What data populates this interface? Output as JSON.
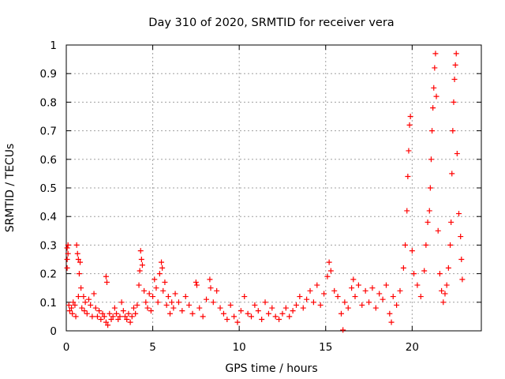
{
  "chart_data": {
    "type": "scatter",
    "title": "Day 310 of 2020, SRMTID for receiver vera",
    "xlabel": "GPS time / hours",
    "ylabel": "SRMTID / TECUs",
    "xlim": [
      0,
      24
    ],
    "ylim": [
      0,
      1
    ],
    "x_ticks": [
      0,
      5,
      10,
      15,
      20
    ],
    "x_tick_labels": [
      "0",
      "5",
      "10",
      "15",
      "20"
    ],
    "y_ticks": [
      0,
      0.1,
      0.2,
      0.3,
      0.4,
      0.5,
      0.6,
      0.7,
      0.8,
      0.9,
      1
    ],
    "y_tick_labels": [
      "0",
      "0.1",
      "0.2",
      "0.3",
      "0.4",
      "0.5",
      "0.6",
      "0.7",
      "0.8",
      "0.9",
      "1"
    ],
    "grid": true,
    "marker": "+",
    "marker_color": "#ff0000",
    "series": [
      {
        "name": "SRMTID",
        "points": [
          [
            0.05,
            0.29
          ],
          [
            0.05,
            0.25
          ],
          [
            0.05,
            0.22
          ],
          [
            0.1,
            0.3
          ],
          [
            0.1,
            0.27
          ],
          [
            0.15,
            0.09
          ],
          [
            0.2,
            0.07
          ],
          [
            0.3,
            0.08
          ],
          [
            0.35,
            0.06
          ],
          [
            0.4,
            0.1
          ],
          [
            0.5,
            0.09
          ],
          [
            0.55,
            0.05
          ],
          [
            0.6,
            0.3
          ],
          [
            0.65,
            0.27
          ],
          [
            0.7,
            0.25
          ],
          [
            0.7,
            0.12
          ],
          [
            0.75,
            0.2
          ],
          [
            0.8,
            0.24
          ],
          [
            0.85,
            0.15
          ],
          [
            0.9,
            0.08
          ],
          [
            1.0,
            0.12
          ],
          [
            1.05,
            0.07
          ],
          [
            1.1,
            0.1
          ],
          [
            1.2,
            0.06
          ],
          [
            1.3,
            0.11
          ],
          [
            1.4,
            0.09
          ],
          [
            1.5,
            0.05
          ],
          [
            1.6,
            0.13
          ],
          [
            1.7,
            0.08
          ],
          [
            1.8,
            0.05
          ],
          [
            1.9,
            0.07
          ],
          [
            2.0,
            0.04
          ],
          [
            2.1,
            0.06
          ],
          [
            2.2,
            0.05
          ],
          [
            2.3,
            0.03
          ],
          [
            2.3,
            0.19
          ],
          [
            2.35,
            0.17
          ],
          [
            2.4,
            0.02
          ],
          [
            2.5,
            0.06
          ],
          [
            2.6,
            0.04
          ],
          [
            2.7,
            0.05
          ],
          [
            2.8,
            0.08
          ],
          [
            2.9,
            0.06
          ],
          [
            3.0,
            0.04
          ],
          [
            3.1,
            0.05
          ],
          [
            3.2,
            0.1
          ],
          [
            3.3,
            0.07
          ],
          [
            3.4,
            0.05
          ],
          [
            3.5,
            0.04
          ],
          [
            3.6,
            0.06
          ],
          [
            3.7,
            0.03
          ],
          [
            3.8,
            0.05
          ],
          [
            3.9,
            0.08
          ],
          [
            4.0,
            0.06
          ],
          [
            4.1,
            0.09
          ],
          [
            4.2,
            0.16
          ],
          [
            4.25,
            0.21
          ],
          [
            4.3,
            0.28
          ],
          [
            4.35,
            0.25
          ],
          [
            4.4,
            0.23
          ],
          [
            4.5,
            0.14
          ],
          [
            4.6,
            0.1
          ],
          [
            4.7,
            0.08
          ],
          [
            4.8,
            0.13
          ],
          [
            4.9,
            0.07
          ],
          [
            5.0,
            0.12
          ],
          [
            5.1,
            0.18
          ],
          [
            5.2,
            0.15
          ],
          [
            5.3,
            0.1
          ],
          [
            5.4,
            0.2
          ],
          [
            5.5,
            0.24
          ],
          [
            5.55,
            0.22
          ],
          [
            5.6,
            0.14
          ],
          [
            5.7,
            0.17
          ],
          [
            5.8,
            0.09
          ],
          [
            5.9,
            0.12
          ],
          [
            6.0,
            0.06
          ],
          [
            6.1,
            0.1
          ],
          [
            6.2,
            0.08
          ],
          [
            6.3,
            0.13
          ],
          [
            6.5,
            0.1
          ],
          [
            6.7,
            0.07
          ],
          [
            6.9,
            0.12
          ],
          [
            7.1,
            0.09
          ],
          [
            7.3,
            0.06
          ],
          [
            7.5,
            0.17
          ],
          [
            7.55,
            0.16
          ],
          [
            7.7,
            0.08
          ],
          [
            7.9,
            0.05
          ],
          [
            8.1,
            0.11
          ],
          [
            8.3,
            0.18
          ],
          [
            8.35,
            0.15
          ],
          [
            8.5,
            0.1
          ],
          [
            8.7,
            0.14
          ],
          [
            8.9,
            0.08
          ],
          [
            9.1,
            0.06
          ],
          [
            9.3,
            0.04
          ],
          [
            9.5,
            0.09
          ],
          [
            9.7,
            0.05
          ],
          [
            9.9,
            0.03
          ],
          [
            10.1,
            0.07
          ],
          [
            10.3,
            0.12
          ],
          [
            10.5,
            0.06
          ],
          [
            10.7,
            0.05
          ],
          [
            10.9,
            0.09
          ],
          [
            11.1,
            0.07
          ],
          [
            11.3,
            0.04
          ],
          [
            11.5,
            0.1
          ],
          [
            11.7,
            0.06
          ],
          [
            11.9,
            0.08
          ],
          [
            12.1,
            0.05
          ],
          [
            12.3,
            0.04
          ],
          [
            12.5,
            0.06
          ],
          [
            12.7,
            0.08
          ],
          [
            12.9,
            0.05
          ],
          [
            13.1,
            0.07
          ],
          [
            13.3,
            0.09
          ],
          [
            13.5,
            0.12
          ],
          [
            13.7,
            0.08
          ],
          [
            13.9,
            0.11
          ],
          [
            14.1,
            0.14
          ],
          [
            14.3,
            0.1
          ],
          [
            14.5,
            0.16
          ],
          [
            14.7,
            0.09
          ],
          [
            14.9,
            0.13
          ],
          [
            15.1,
            0.19
          ],
          [
            15.2,
            0.24
          ],
          [
            15.3,
            0.21
          ],
          [
            15.5,
            0.14
          ],
          [
            15.7,
            0.12
          ],
          [
            15.9,
            0.06
          ],
          [
            16.0,
            0.003
          ],
          [
            16.1,
            0.1
          ],
          [
            16.3,
            0.08
          ],
          [
            16.5,
            0.15
          ],
          [
            16.6,
            0.18
          ],
          [
            16.7,
            0.12
          ],
          [
            16.9,
            0.16
          ],
          [
            17.1,
            0.09
          ],
          [
            17.3,
            0.14
          ],
          [
            17.5,
            0.1
          ],
          [
            17.7,
            0.15
          ],
          [
            17.9,
            0.08
          ],
          [
            18.1,
            0.13
          ],
          [
            18.3,
            0.11
          ],
          [
            18.5,
            0.16
          ],
          [
            18.7,
            0.06
          ],
          [
            18.8,
            0.03
          ],
          [
            18.9,
            0.12
          ],
          [
            19.1,
            0.09
          ],
          [
            19.3,
            0.14
          ],
          [
            19.5,
            0.22
          ],
          [
            19.6,
            0.3
          ],
          [
            19.7,
            0.42
          ],
          [
            19.75,
            0.54
          ],
          [
            19.8,
            0.63
          ],
          [
            19.85,
            0.72
          ],
          [
            19.9,
            0.75
          ],
          [
            20.0,
            0.28
          ],
          [
            20.1,
            0.2
          ],
          [
            20.3,
            0.16
          ],
          [
            20.5,
            0.12
          ],
          [
            20.7,
            0.21
          ],
          [
            20.8,
            0.3
          ],
          [
            20.9,
            0.38
          ],
          [
            21.0,
            0.42
          ],
          [
            21.05,
            0.5
          ],
          [
            21.1,
            0.6
          ],
          [
            21.15,
            0.7
          ],
          [
            21.2,
            0.78
          ],
          [
            21.25,
            0.85
          ],
          [
            21.3,
            0.92
          ],
          [
            21.35,
            0.97
          ],
          [
            21.4,
            0.82
          ],
          [
            21.5,
            0.35
          ],
          [
            21.6,
            0.2
          ],
          [
            21.7,
            0.14
          ],
          [
            21.8,
            0.1
          ],
          [
            21.9,
            0.13
          ],
          [
            22.0,
            0.16
          ],
          [
            22.1,
            0.22
          ],
          [
            22.2,
            0.3
          ],
          [
            22.25,
            0.38
          ],
          [
            22.3,
            0.55
          ],
          [
            22.35,
            0.7
          ],
          [
            22.4,
            0.8
          ],
          [
            22.45,
            0.88
          ],
          [
            22.5,
            0.93
          ],
          [
            22.55,
            0.97
          ],
          [
            22.6,
            0.62
          ],
          [
            22.7,
            0.41
          ],
          [
            22.8,
            0.33
          ],
          [
            22.85,
            0.25
          ],
          [
            22.9,
            0.18
          ]
        ]
      }
    ]
  }
}
